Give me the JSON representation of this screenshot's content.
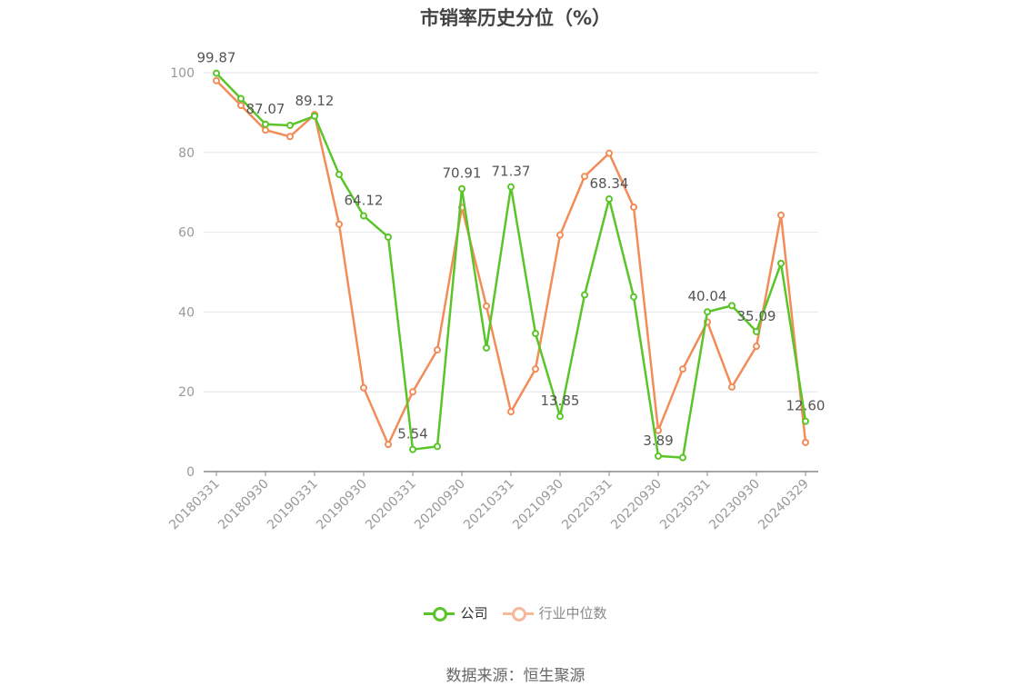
{
  "title": "市销率历史分位（%）",
  "source": "数据来源：恒生聚源",
  "colors": {
    "company": "#5ac528",
    "industry": "#f28c58",
    "industry_legend": "#f7b99a",
    "grid": "#e4e6ee",
    "axis": "#999999",
    "label": "#555555"
  },
  "legend": [
    {
      "name": "公司",
      "color_key": "company"
    },
    {
      "name": "行业中位数",
      "color_key": "industry_legend"
    }
  ],
  "chart_data": {
    "type": "line",
    "title": "市销率历史分位（%）",
    "ylim": [
      0,
      100
    ],
    "yticks": [
      0,
      20,
      40,
      60,
      80,
      100
    ],
    "grid": true,
    "legend_position": "bottom-center",
    "x_tick_labels": [
      "20180331",
      "20180930",
      "20190331",
      "20190930",
      "20200331",
      "20200930",
      "20210331",
      "20210930",
      "20220331",
      "20220930",
      "20230331",
      "20230930",
      "20240329"
    ],
    "x": [
      "20180331",
      "20180630",
      "20180930",
      "20181231",
      "20190331",
      "20190630",
      "20190930",
      "20191231",
      "20200331",
      "20200630",
      "20200930",
      "20201231",
      "20210331",
      "20210630",
      "20210930",
      "20211231",
      "20220331",
      "20220630",
      "20220930",
      "20221231",
      "20230331",
      "20230630",
      "20230930",
      "20231231",
      "20240329"
    ],
    "series": [
      {
        "name": "公司",
        "values": [
          99.87,
          93.5,
          87.07,
          86.8,
          89.12,
          74.5,
          64.12,
          58.8,
          5.54,
          6.3,
          70.91,
          31.0,
          71.37,
          34.6,
          13.85,
          44.3,
          68.34,
          43.8,
          3.89,
          3.5,
          40.04,
          41.6,
          35.09,
          52.2,
          12.6
        ],
        "labels": {
          "0": "99.87",
          "2": "87.07",
          "4": "89.12",
          "6": "64.12",
          "8": "5.54",
          "10": "70.91",
          "12": "71.37",
          "14": "13.85",
          "16": "68.34",
          "18": "3.89",
          "20": "40.04",
          "22": "35.09",
          "24": "12.60"
        }
      },
      {
        "name": "行业中位数",
        "values": [
          98.0,
          91.8,
          85.6,
          84.0,
          89.5,
          62.0,
          21.0,
          6.8,
          20.0,
          30.5,
          66.2,
          41.5,
          15.0,
          25.7,
          59.3,
          74.0,
          79.8,
          66.3,
          10.3,
          25.7,
          37.5,
          21.2,
          31.4,
          64.3,
          7.3
        ]
      }
    ]
  }
}
